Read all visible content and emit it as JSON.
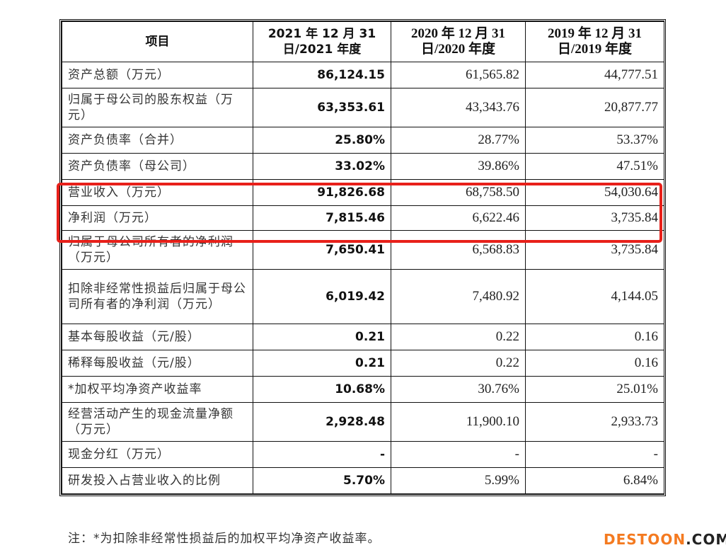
{
  "table": {
    "headers": [
      {
        "line1": "项目",
        "line2": ""
      },
      {
        "line1": "2021 年 12 月 31",
        "line2": "日/2021 年度"
      },
      {
        "line1": "2020 年 12 月 31",
        "line2": "日/2020 年度"
      },
      {
        "line1": "2019 年 12 月 31",
        "line2": "日/2019 年度"
      }
    ],
    "rows": [
      {
        "label": "资产总额（万元）",
        "v2021": "86,124.15",
        "v2020": "61,565.82",
        "v2019": "44,777.51"
      },
      {
        "label": "归属于母公司的股东权益（万元）",
        "v2021": "63,353.61",
        "v2020": "43,343.76",
        "v2019": "20,877.77"
      },
      {
        "label": "资产负债率（合并）",
        "v2021": "25.80%",
        "v2020": "28.77%",
        "v2019": "53.37%"
      },
      {
        "label": "资产负债率（母公司）",
        "v2021": "33.02%",
        "v2020": "39.86%",
        "v2019": "47.51%"
      },
      {
        "label": "营业收入（万元）",
        "v2021": "91,826.68",
        "v2020": "68,758.50",
        "v2019": "54,030.64"
      },
      {
        "label": "净利润（万元）",
        "v2021": "7,815.46",
        "v2020": "6,622.46",
        "v2019": "3,735.84"
      },
      {
        "label": "归属于母公司所有者的净利润（万元）",
        "v2021": "7,650.41",
        "v2020": "6,568.83",
        "v2019": "3,735.84"
      },
      {
        "label": "扣除非经常性损益后归属于母公司所有者的净利润（万元）",
        "v2021": "6,019.42",
        "v2020": "7,480.92",
        "v2019": "4,144.05"
      },
      {
        "label": "基本每股收益（元/股）",
        "v2021": "0.21",
        "v2020": "0.22",
        "v2019": "0.16"
      },
      {
        "label": "稀释每股收益（元/股）",
        "v2021": "0.21",
        "v2020": "0.22",
        "v2019": "0.16"
      },
      {
        "label": "*加权平均净资产收益率",
        "v2021": "10.68%",
        "v2020": "30.76%",
        "v2019": "25.01%"
      },
      {
        "label": "经营活动产生的现金流量净额（万元）",
        "v2021": "2,928.48",
        "v2020": "11,900.10",
        "v2019": "2,933.73"
      },
      {
        "label": "现金分红（万元）",
        "v2021": "-",
        "v2020": "-",
        "v2019": "-"
      },
      {
        "label": "研发投入占营业收入的比例",
        "v2021": "5.70%",
        "v2020": "5.99%",
        "v2019": "6.84%"
      }
    ]
  },
  "highlight": {
    "color": "#e8201a",
    "rows": [
      "营业收入（万元）",
      "净利润（万元）"
    ]
  },
  "note": "注：*为扣除非经常性损益后的加权平均净资产收益率。",
  "watermark": {
    "part1": "DESTOON",
    "part2": ".COM",
    "color": "#f47a20"
  }
}
